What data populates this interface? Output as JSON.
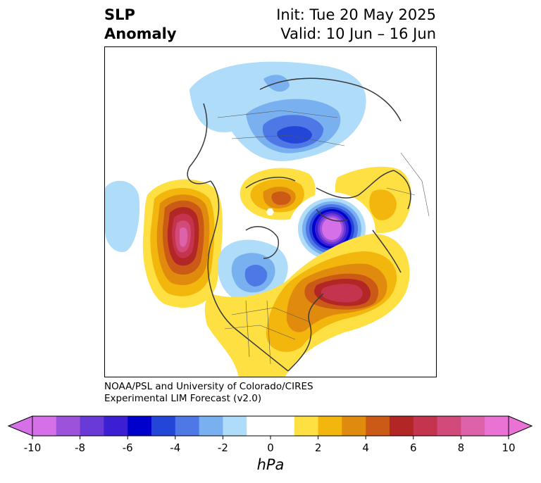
{
  "header": {
    "variable_line1": "SLP",
    "variable_line2": "Anomaly",
    "init_line": "Init: Tue 20 May 2025",
    "valid_line": "Valid: 10 Jun – 16 Jun"
  },
  "credit": {
    "line1": "NOAA/PSL and University of Colorado/CIRES",
    "line2": "Experimental LIM Forecast (v2.0)"
  },
  "colorbar": {
    "unit": "hPa",
    "levels": [
      -10,
      -9,
      -8,
      -7,
      -6,
      -5,
      -4,
      -3,
      -2,
      -1,
      1,
      2,
      3,
      4,
      5,
      6,
      7,
      8,
      9,
      10
    ],
    "colors": [
      "#d670e8",
      "#9d52dc",
      "#6a3ad9",
      "#3d1fd3",
      "#0000cc",
      "#2346d9",
      "#4d78e6",
      "#78b0f0",
      "#aedcf9",
      "#ffffff",
      "#ffe042",
      "#f2b60c",
      "#e08b0d",
      "#cc5a17",
      "#b32626",
      "#c4344e",
      "#d24a7a",
      "#de62aa",
      "#ea72d4"
    ],
    "tick_labels": [
      "-10",
      "-8",
      "-6",
      "-4",
      "-2",
      "0",
      "2",
      "4",
      "6",
      "8",
      "10"
    ],
    "extend": "both"
  },
  "map": {
    "projection": "north polar stereographic",
    "features": [
      {
        "name": "pacific-high",
        "sign": "positive",
        "peak_hpa": 10
      },
      {
        "name": "north-atlantic-high",
        "sign": "positive",
        "peak_hpa": 7
      },
      {
        "name": "greenland-low",
        "sign": "negative",
        "peak_hpa": -10
      },
      {
        "name": "siberia-low",
        "sign": "negative",
        "peak_hpa": -6
      },
      {
        "name": "eastern-north-america-low",
        "sign": "negative",
        "peak_hpa": -4
      },
      {
        "name": "arctic-high",
        "sign": "positive",
        "peak_hpa": 4
      },
      {
        "name": "europe-high",
        "sign": "positive",
        "peak_hpa": 2
      }
    ]
  }
}
